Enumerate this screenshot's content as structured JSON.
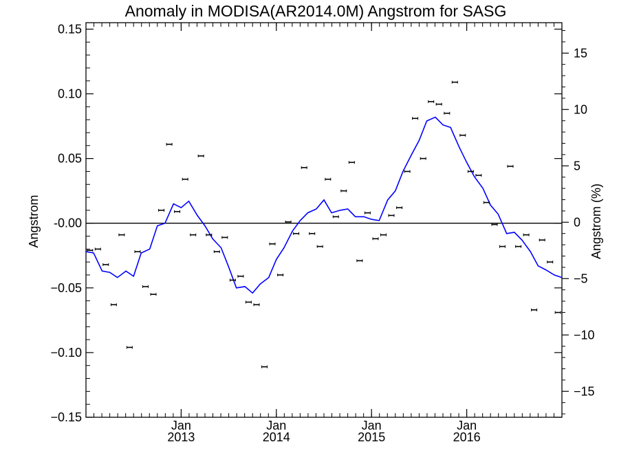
{
  "chart_data": {
    "type": "line",
    "title": "Anomaly in MODISA(AR2014.0M) Angstrom for SASG",
    "ylabel": "Angstrom",
    "y2label": "Angstrom (%)",
    "xlabel": "",
    "x_range": [
      2012.0,
      2017.0
    ],
    "ylim": [
      -0.15,
      0.155
    ],
    "y2lim": [
      -17.3,
      17.7
    ],
    "y_ticks": [
      -0.15,
      -0.1,
      -0.05,
      0.0,
      0.05,
      0.1,
      0.15
    ],
    "y_tick_labels": [
      "−0.15",
      "−0.10",
      "−0.05",
      "-0.00",
      "0.05",
      "0.10",
      "0.15"
    ],
    "y2_ticks": [
      -15,
      -10,
      -5,
      0,
      5,
      10,
      15
    ],
    "y2_tick_labels": [
      "−15",
      "−10",
      "−5",
      "0",
      "5",
      "10",
      "15"
    ],
    "x_ticks": [
      {
        "x": 2013.0,
        "month": "Jan",
        "year": "2013"
      },
      {
        "x": 2014.0,
        "month": "Jan",
        "year": "2014"
      },
      {
        "x": 2015.0,
        "month": "Jan",
        "year": "2015"
      },
      {
        "x": 2016.0,
        "month": "Jan",
        "year": "2016"
      }
    ],
    "zero_line": true,
    "grid": false,
    "colors": {
      "points": "#000000",
      "smoothed": "#0000ff",
      "axes": "#000000"
    },
    "series": [
      {
        "style": "points-with-errorbars",
        "x": [
          2012.042,
          2012.125,
          2012.208,
          2012.292,
          2012.375,
          2012.458,
          2012.542,
          2012.625,
          2012.708,
          2012.792,
          2012.875,
          2012.958,
          2013.042,
          2013.125,
          2013.208,
          2013.292,
          2013.375,
          2013.458,
          2013.542,
          2013.625,
          2013.708,
          2013.792,
          2013.875,
          2013.958,
          2014.042,
          2014.125,
          2014.208,
          2014.292,
          2014.375,
          2014.458,
          2014.542,
          2014.625,
          2014.708,
          2014.792,
          2014.875,
          2014.958,
          2015.042,
          2015.125,
          2015.208,
          2015.292,
          2015.375,
          2015.458,
          2015.542,
          2015.625,
          2015.708,
          2015.792,
          2015.875,
          2015.958,
          2016.042,
          2016.125,
          2016.208,
          2016.292,
          2016.375,
          2016.458,
          2016.542,
          2016.625,
          2016.708,
          2016.792,
          2016.875,
          2016.958
        ],
        "y": [
          -0.021,
          -0.02,
          -0.032,
          -0.063,
          -0.009,
          -0.096,
          -0.022,
          -0.049,
          -0.055,
          0.01,
          0.061,
          0.009,
          0.034,
          -0.009,
          0.052,
          -0.009,
          -0.022,
          -0.011,
          -0.044,
          -0.041,
          -0.061,
          -0.063,
          -0.111,
          -0.016,
          -0.04,
          0.001,
          -0.008,
          0.043,
          -0.008,
          -0.018,
          0.034,
          0.005,
          0.025,
          0.047,
          -0.029,
          0.008,
          -0.012,
          -0.009,
          0.006,
          0.012,
          0.04,
          0.081,
          0.05,
          0.094,
          0.092,
          0.085,
          0.109,
          0.068,
          0.04,
          0.037,
          0.016,
          -0.001,
          -0.018,
          0.044,
          -0.018,
          -0.009,
          -0.067,
          -0.013,
          -0.03,
          -0.069
        ]
      },
      {
        "style": "line",
        "x": [
          2012.0,
          2012.08,
          2012.17,
          2012.25,
          2012.33,
          2012.42,
          2012.5,
          2012.58,
          2012.67,
          2012.75,
          2012.83,
          2012.92,
          2013.0,
          2013.08,
          2013.17,
          2013.25,
          2013.33,
          2013.42,
          2013.5,
          2013.58,
          2013.67,
          2013.75,
          2013.83,
          2013.92,
          2014.0,
          2014.08,
          2014.17,
          2014.25,
          2014.33,
          2014.42,
          2014.5,
          2014.58,
          2014.67,
          2014.75,
          2014.83,
          2014.92,
          2015.0,
          2015.08,
          2015.17,
          2015.25,
          2015.33,
          2015.42,
          2015.5,
          2015.58,
          2015.67,
          2015.75,
          2015.83,
          2015.92,
          2016.0,
          2016.08,
          2016.17,
          2016.25,
          2016.33,
          2016.42,
          2016.5,
          2016.58,
          2016.67,
          2016.75,
          2016.83,
          2016.92,
          2017.0
        ],
        "y": [
          -0.022,
          -0.023,
          -0.037,
          -0.038,
          -0.042,
          -0.037,
          -0.041,
          -0.023,
          -0.02,
          -0.002,
          0.0,
          0.015,
          0.012,
          0.017,
          0.006,
          -0.002,
          -0.012,
          -0.019,
          -0.034,
          -0.05,
          -0.049,
          -0.054,
          -0.047,
          -0.042,
          -0.028,
          -0.019,
          -0.006,
          0.002,
          0.008,
          0.011,
          0.018,
          0.008,
          0.01,
          0.011,
          0.005,
          0.005,
          0.003,
          0.002,
          0.018,
          0.025,
          0.04,
          0.053,
          0.064,
          0.079,
          0.082,
          0.076,
          0.074,
          0.059,
          0.047,
          0.036,
          0.027,
          0.014,
          0.007,
          -0.008,
          -0.007,
          -0.013,
          -0.022,
          -0.033,
          -0.036,
          -0.04,
          -0.042
        ]
      }
    ]
  }
}
